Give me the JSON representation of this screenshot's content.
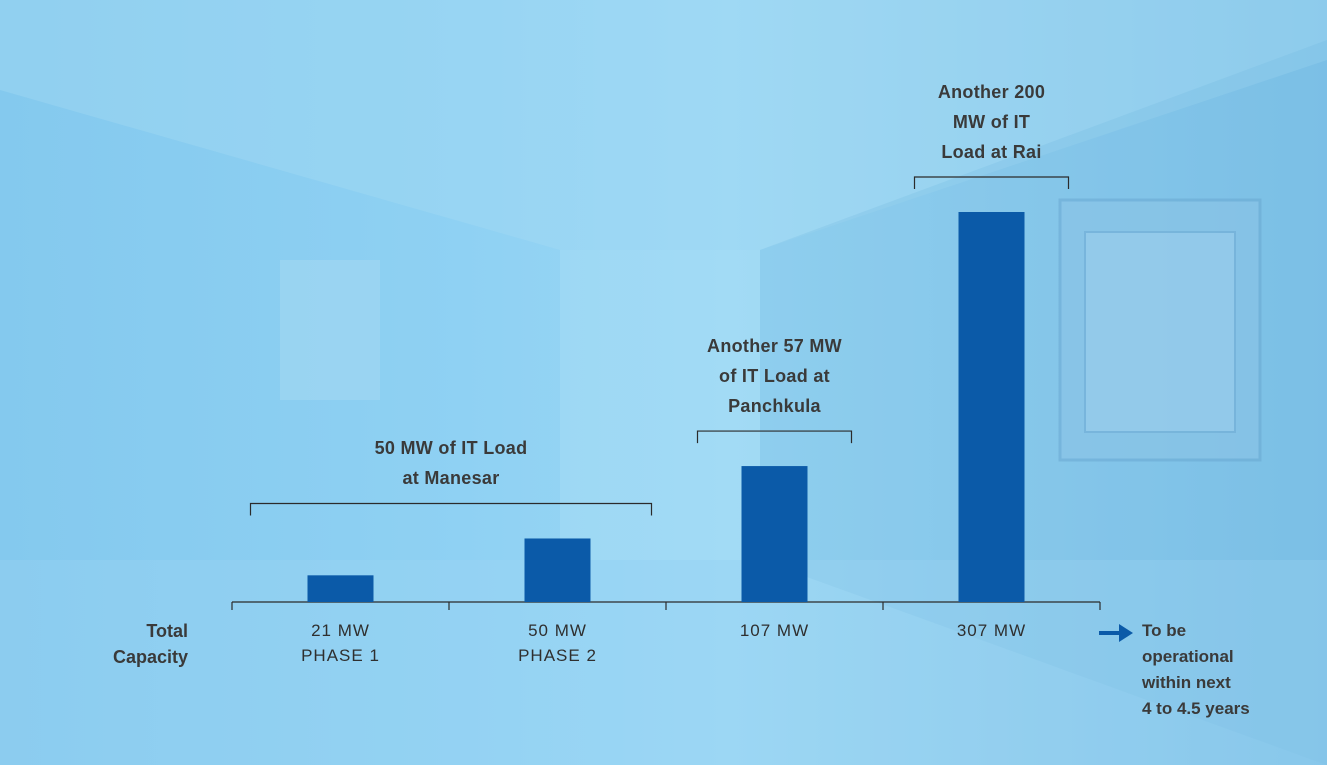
{
  "chart_data": {
    "type": "bar",
    "row_label": [
      "Total",
      "Capacity"
    ],
    "categories": [
      [
        "21 MW",
        "PHASE 1"
      ],
      [
        "50 MW",
        "PHASE 2"
      ],
      [
        "107 MW",
        ""
      ],
      [
        "307 MW",
        ""
      ]
    ],
    "values": [
      21,
      50,
      107,
      307
    ],
    "ylim": [
      0,
      307
    ],
    "bar_color": "#0b5aa8",
    "grid": false,
    "annotations": [
      {
        "text": [
          "50 MW of IT Load",
          "at Manesar"
        ],
        "spans": [
          0,
          1
        ]
      },
      {
        "text": [
          "Another 57 MW",
          "of IT Load at",
          "Panchkula"
        ],
        "spans": [
          2,
          2
        ]
      },
      {
        "text": [
          "Another 200",
          "MW of IT",
          "Load at Rai"
        ],
        "spans": [
          3,
          3
        ]
      }
    ],
    "side_note": [
      "To be",
      "operational",
      "within next",
      "4 to 4.5 years"
    ],
    "arrow_color": "#0b5aa8"
  }
}
